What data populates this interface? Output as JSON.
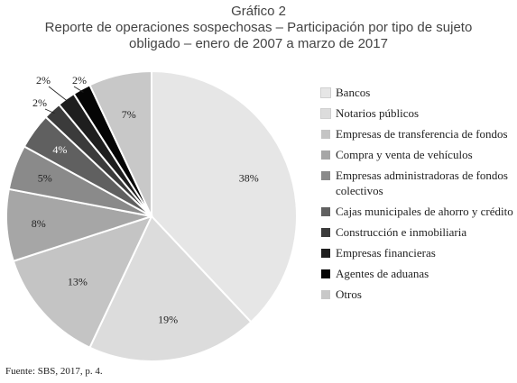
{
  "header": {
    "title": "Gráfico 2",
    "subtitle": "Reporte de operaciones sospechosas – Participación por tipo de sujeto obligado – enero de 2007 a marzo de 2017"
  },
  "source": "Fuente: SBS, 2017, p. 4.",
  "chart_data": {
    "type": "pie",
    "title": "Gráfico 2",
    "subtitle": "Reporte de operaciones sospechosas – Participación por tipo de sujeto obligado – enero de 2007 a marzo de 2017",
    "legend_position": "right",
    "slices": [
      {
        "label": "Bancos",
        "value": 38,
        "value_label": "38%",
        "color": "#e6e6e6"
      },
      {
        "label": "Notarios públicos",
        "value": 19,
        "value_label": "19%",
        "color": "#dcdcdc"
      },
      {
        "label": "Empresas de transferencia de fondos",
        "value": 13,
        "value_label": "13%",
        "color": "#c4c4c4"
      },
      {
        "label": "Compra y venta de vehículos",
        "value": 8,
        "value_label": "8%",
        "color": "#a6a6a6"
      },
      {
        "label": "Empresas administradoras de fondos colectivos",
        "value": 5,
        "value_label": "5%",
        "color": "#8a8a8a"
      },
      {
        "label": "Cajas municipales de ahorro y crédito",
        "value": 4,
        "value_label": "4%",
        "color": "#606060"
      },
      {
        "label": "Construcción e inmobiliaria",
        "value": 2,
        "value_label": "2%",
        "color": "#3b3b3b"
      },
      {
        "label": "Empresas financieras",
        "value": 2,
        "value_label": "2%",
        "color": "#1e1e1e"
      },
      {
        "label": "Agentes de aduanas",
        "value": 2,
        "value_label": "2%",
        "color": "#050505"
      },
      {
        "label": "Otros",
        "value": 7,
        "value_label": "7%",
        "color": "#c8c8c8"
      }
    ]
  }
}
